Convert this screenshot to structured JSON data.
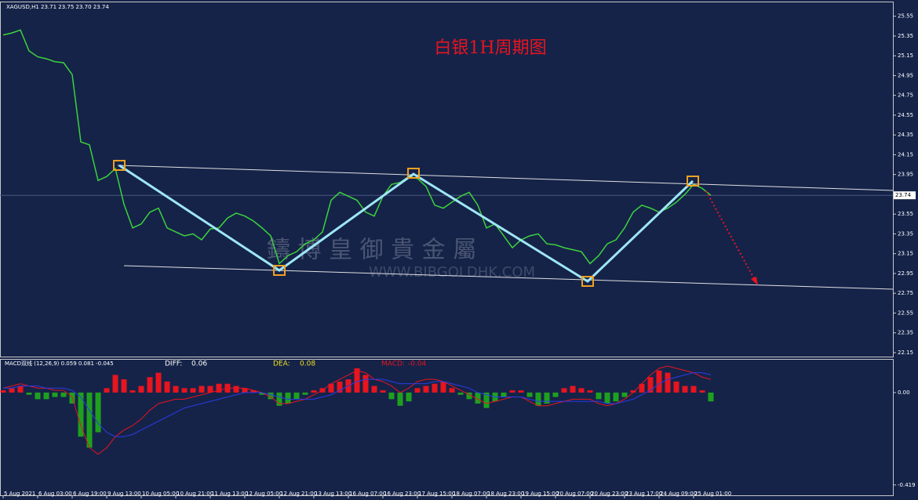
{
  "chart_data": [
    {
      "type": "line",
      "symbol": "XAGUSD,H1  23.71 23.75 23.70 23.74",
      "title": "白银1H周期图",
      "series": [
        {
          "color": "#3cd23c",
          "values": [
            25.36,
            25.38,
            25.41,
            25.2,
            25.14,
            25.12,
            25.09,
            25.08,
            24.96,
            24.28,
            24.25,
            23.89,
            23.93,
            24.01,
            23.65,
            23.41,
            23.45,
            23.57,
            23.61,
            23.41,
            23.37,
            23.33,
            23.35,
            23.29,
            23.4,
            23.41,
            23.51,
            23.56,
            23.53,
            23.48,
            23.41,
            23.33,
            23.05,
            23.13,
            23.17,
            23.25,
            23.29,
            23.37,
            23.69,
            23.77,
            23.73,
            23.69,
            23.57,
            23.53,
            23.73,
            23.85,
            23.87,
            23.93,
            23.91,
            23.83,
            23.64,
            23.61,
            23.67,
            23.73,
            23.77,
            23.64,
            23.41,
            23.45,
            23.33,
            23.21,
            23.29,
            23.33,
            23.35,
            23.25,
            23.24,
            23.21,
            23.19,
            23.17,
            23.05,
            23.13,
            23.25,
            23.29,
            23.41,
            23.57,
            23.64,
            23.61,
            23.57,
            23.61,
            23.67,
            23.75,
            23.85,
            23.81,
            23.74
          ]
        }
      ],
      "current_price": 23.74,
      "ylim": [
        22.11,
        25.69
      ],
      "yticks": [
        25.55,
        25.35,
        25.15,
        24.95,
        24.75,
        24.55,
        24.35,
        24.15,
        23.95,
        23.55,
        23.35,
        23.15,
        22.95,
        22.75,
        22.55,
        22.35,
        22.15
      ]
    },
    {
      "type": "macd",
      "indicator": "MACD双线 (12,26,9) 0.059 0.081 -0.045",
      "categories": [
        "5 Aug 2021",
        null,
        null,
        null,
        "6 Aug 03:00",
        null,
        null,
        null,
        "6 Aug 19:00",
        null,
        null,
        null,
        "9 Aug 13:00",
        null,
        null,
        null,
        "10 Aug 05:00",
        null,
        null,
        null,
        "10 Aug 21:00",
        null,
        null,
        null,
        "11 Aug 13:00",
        null,
        null,
        null,
        "12 Aug 05:00",
        null,
        null,
        null,
        "12 Aug 21:00",
        null,
        null,
        null,
        "13 Aug 13:00",
        null,
        null,
        null,
        "16 Aug 07:00",
        null,
        null,
        null,
        "16 Aug 23:00",
        null,
        null,
        null,
        "17 Aug 15:00",
        null,
        null,
        null,
        "18 Aug 07:00",
        null,
        null,
        null,
        "18 Aug 23:00",
        null,
        null,
        null,
        "19 Aug 15:00",
        null,
        null,
        null,
        "20 Aug 07:00",
        null,
        null,
        null,
        "20 Aug 23:00",
        null,
        null,
        null,
        "23 Aug 17:00",
        null,
        null,
        null,
        "24 Aug 09:00",
        null,
        null,
        null,
        "25 Aug 01:00",
        null,
        null
      ],
      "series": [
        {
          "name": "DIFF:",
          "current": 0.06,
          "color": "#e8141e",
          "label_color": "#ffffff",
          "values": [
            0.02,
            0.03,
            0.04,
            0.03,
            0.02,
            0.02,
            0.01,
            0.01,
            -0.02,
            -0.15,
            -0.25,
            -0.28,
            -0.25,
            -0.2,
            -0.17,
            -0.15,
            -0.12,
            -0.08,
            -0.05,
            -0.04,
            -0.03,
            -0.03,
            -0.02,
            -0.01,
            0.0,
            0.01,
            0.02,
            0.02,
            0.02,
            0.01,
            0.0,
            -0.02,
            -0.05,
            -0.05,
            -0.04,
            -0.03,
            -0.01,
            0.01,
            0.04,
            0.06,
            0.08,
            0.1,
            0.09,
            0.06,
            0.05,
            0.03,
            0.0,
            0.02,
            0.05,
            0.06,
            0.06,
            0.05,
            0.03,
            0.01,
            -0.01,
            -0.03,
            -0.05,
            -0.04,
            -0.03,
            -0.02,
            -0.02,
            -0.04,
            -0.06,
            -0.06,
            -0.05,
            -0.04,
            -0.03,
            -0.03,
            -0.03,
            -0.05,
            -0.06,
            -0.05,
            -0.03,
            0.0,
            0.04,
            0.08,
            0.11,
            0.12,
            0.11,
            0.1,
            0.09,
            0.07,
            0.06
          ]
        },
        {
          "name": "DEA:",
          "current": 0.08,
          "color": "#2a3ce8",
          "label_color": "#f0e020",
          "values": [
            0.02,
            0.02,
            0.03,
            0.03,
            0.03,
            0.02,
            0.02,
            0.02,
            0.01,
            -0.02,
            -0.08,
            -0.14,
            -0.18,
            -0.2,
            -0.2,
            -0.19,
            -0.17,
            -0.15,
            -0.13,
            -0.11,
            -0.09,
            -0.07,
            -0.06,
            -0.05,
            -0.04,
            -0.03,
            -0.02,
            -0.01,
            0.0,
            0.0,
            0.0,
            -0.01,
            -0.02,
            -0.03,
            -0.03,
            -0.03,
            -0.03,
            -0.02,
            -0.01,
            0.01,
            0.03,
            0.05,
            0.06,
            0.06,
            0.06,
            0.05,
            0.04,
            0.04,
            0.04,
            0.04,
            0.05,
            0.05,
            0.04,
            0.03,
            0.02,
            0.0,
            -0.01,
            -0.02,
            -0.02,
            -0.02,
            -0.02,
            -0.03,
            -0.04,
            -0.04,
            -0.04,
            -0.04,
            -0.04,
            -0.04,
            -0.04,
            -0.04,
            -0.05,
            -0.05,
            -0.04,
            -0.03,
            -0.01,
            0.01,
            0.04,
            0.06,
            0.07,
            0.08,
            0.09,
            0.09,
            0.08
          ]
        },
        {
          "name": "MACD:",
          "current": -0.04,
          "color": "#e8141e",
          "negative_color": "#1ea01e",
          "label_color": "#e8141e",
          "values": [
            0.01,
            0.02,
            0.03,
            -0.01,
            -0.03,
            -0.03,
            -0.02,
            -0.02,
            -0.05,
            -0.2,
            -0.25,
            -0.18,
            0.02,
            0.08,
            0.06,
            0.01,
            0.03,
            0.07,
            0.09,
            0.05,
            0.03,
            0.02,
            0.02,
            0.03,
            0.03,
            0.04,
            0.04,
            0.03,
            0.02,
            0.01,
            -0.01,
            -0.03,
            -0.06,
            -0.05,
            -0.03,
            -0.01,
            0.01,
            0.02,
            0.04,
            0.05,
            0.06,
            0.11,
            0.08,
            0.03,
            0.01,
            -0.03,
            -0.06,
            -0.04,
            0.02,
            0.03,
            0.04,
            0.05,
            0.02,
            -0.01,
            -0.03,
            -0.05,
            -0.07,
            -0.04,
            -0.02,
            0.01,
            0.01,
            -0.02,
            -0.06,
            -0.05,
            -0.02,
            0.02,
            0.03,
            0.02,
            0.01,
            -0.03,
            -0.05,
            -0.04,
            -0.02,
            0.01,
            0.04,
            0.07,
            0.1,
            0.09,
            0.05,
            0.03,
            0.03,
            0.01,
            -0.04
          ]
        }
      ],
      "ylim": [
        -0.466,
        0.149
      ],
      "yticks": [
        {
          "value": 0,
          "label": "0.00"
        },
        -0.419
      ]
    }
  ],
  "watermark": {
    "brand": "鑄 博 皇 御 貴 金 屬",
    "url": "WWW.BIBGOLDHK.COM"
  }
}
